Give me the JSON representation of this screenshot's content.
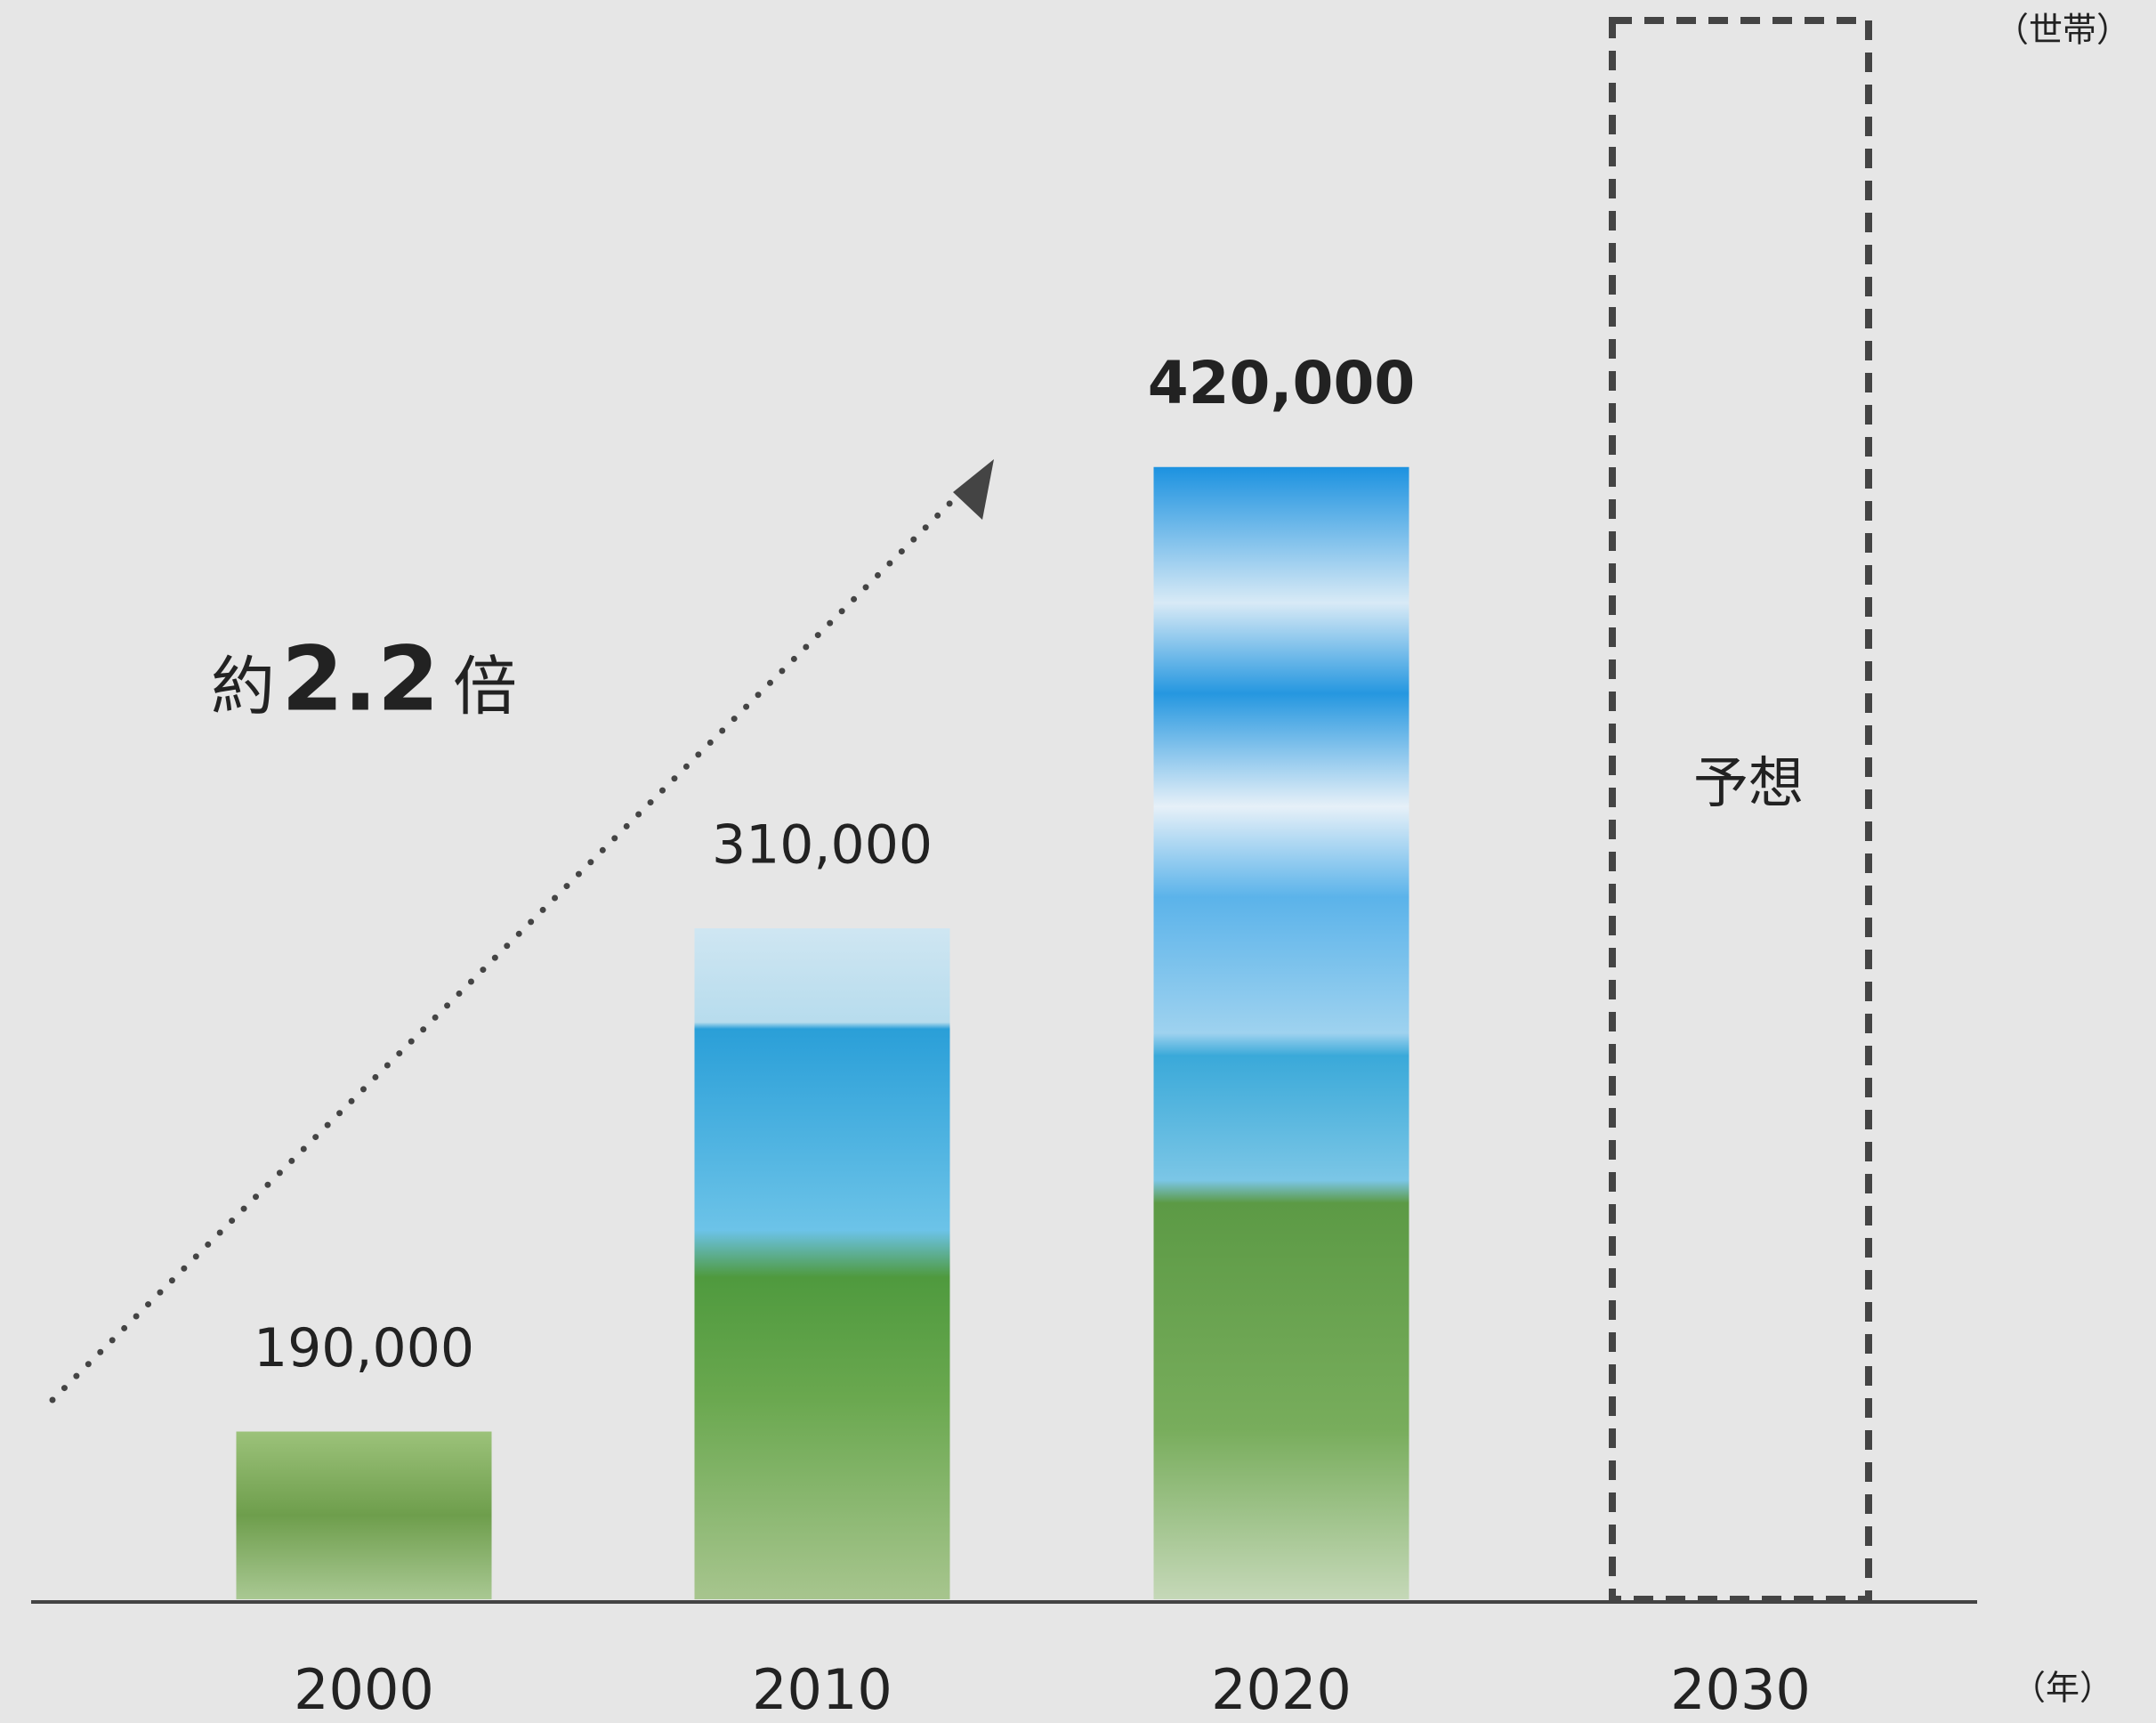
{
  "chart_data": {
    "type": "bar",
    "categories": [
      "2000",
      "2010",
      "2020",
      "2030"
    ],
    "values": [
      190000,
      310000,
      420000,
      null
    ],
    "value_labels": [
      "190,000",
      "310,000",
      "420,000",
      null
    ],
    "ylim": [
      150000,
      525000
    ],
    "y_label": "（世帯）",
    "x_label": "（年）",
    "annotations": {
      "multiplier_prefix": "約",
      "multiplier": "2.2",
      "multiplier_suffix": "倍",
      "forecast": "予想"
    }
  }
}
